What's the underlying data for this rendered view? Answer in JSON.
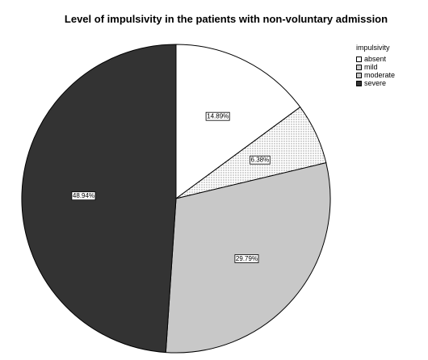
{
  "chart_data": {
    "type": "pie",
    "title": "Level of impulsivity in the patients with non-voluntary admission",
    "legend_title": "impulsivity",
    "legend_position": "top-right",
    "slices": [
      {
        "name": "absent",
        "value": 14.89,
        "label": "14.89%",
        "color": "#ffffff",
        "pattern": "none"
      },
      {
        "name": "mild",
        "value": 6.38,
        "label": "6.38%",
        "color": "#ffffff",
        "pattern": "dots"
      },
      {
        "name": "moderate",
        "value": 29.79,
        "label": "29.79%",
        "color": "#c8c8c8",
        "pattern": "none"
      },
      {
        "name": "severe",
        "value": 48.94,
        "label": "48.94%",
        "color": "#333333",
        "pattern": "none"
      }
    ]
  }
}
